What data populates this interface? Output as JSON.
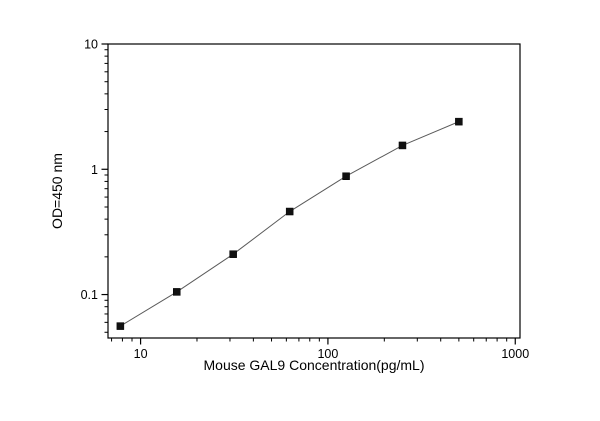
{
  "chart_data": {
    "type": "line",
    "title": "",
    "xlabel": "Mouse GAL9 Concentration(pg/mL)",
    "ylabel": "OD=450 nm",
    "x_scale": "log",
    "y_scale": "log",
    "xlim": [
      6.7,
      1060
    ],
    "ylim": [
      0.045,
      10
    ],
    "x_major_ticks": [
      10,
      100,
      1000
    ],
    "x_major_tick_labels": [
      "10",
      "100",
      "1000"
    ],
    "y_major_ticks": [
      0.1,
      1,
      10
    ],
    "y_major_tick_labels": [
      "0.1",
      "1",
      "10"
    ],
    "grid": false,
    "legend": "none",
    "marker": "filled-square",
    "marker_color": "#111111",
    "line_color": "#5a5a5a",
    "frame_color": "#000000",
    "series": [
      {
        "name": "standard-curve",
        "x": [
          7.8,
          15.6,
          31.2,
          62.5,
          125,
          250,
          500
        ],
        "y": [
          0.056,
          0.105,
          0.21,
          0.46,
          0.88,
          1.55,
          2.4
        ]
      }
    ]
  }
}
